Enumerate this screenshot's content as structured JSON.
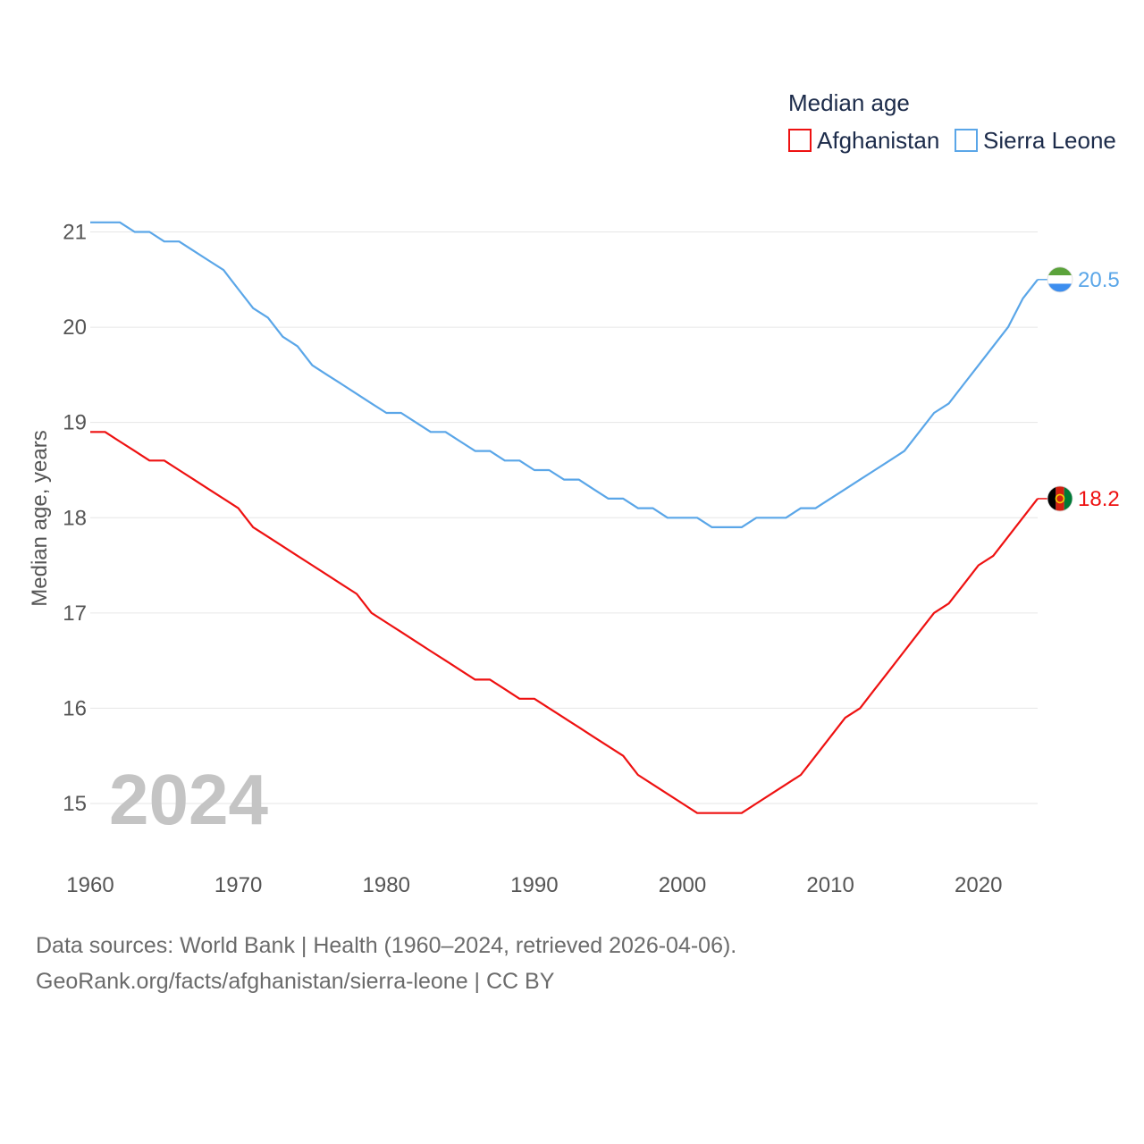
{
  "chart_data": {
    "type": "line",
    "title": "Median age",
    "ylabel": "Median age, years",
    "xlabel": "",
    "year_label": "2024",
    "xlim": [
      1960,
      2024
    ],
    "ylim": [
      14.5,
      21.1
    ],
    "yticks": [
      15,
      16,
      17,
      18,
      19,
      20,
      21
    ],
    "xticks": [
      1960,
      1970,
      1980,
      1990,
      2000,
      2010,
      2020
    ],
    "legend_position": "top-right",
    "x": [
      1960,
      1961,
      1962,
      1963,
      1964,
      1965,
      1966,
      1967,
      1968,
      1969,
      1970,
      1971,
      1972,
      1973,
      1974,
      1975,
      1976,
      1977,
      1978,
      1979,
      1980,
      1981,
      1982,
      1983,
      1984,
      1985,
      1986,
      1987,
      1988,
      1989,
      1990,
      1991,
      1992,
      1993,
      1994,
      1995,
      1996,
      1997,
      1998,
      1999,
      2000,
      2001,
      2002,
      2003,
      2004,
      2005,
      2006,
      2007,
      2008,
      2009,
      2010,
      2011,
      2012,
      2013,
      2014,
      2015,
      2016,
      2017,
      2018,
      2019,
      2020,
      2021,
      2022,
      2023,
      2024
    ],
    "series": [
      {
        "name": "Afghanistan",
        "color": "#ee1111",
        "end_label": "18.2",
        "flag": "afghanistan-flag",
        "values": [
          18.9,
          18.9,
          18.8,
          18.7,
          18.6,
          18.6,
          18.5,
          18.4,
          18.3,
          18.2,
          18.1,
          17.9,
          17.8,
          17.7,
          17.6,
          17.5,
          17.4,
          17.3,
          17.2,
          17.0,
          16.9,
          16.8,
          16.7,
          16.6,
          16.5,
          16.4,
          16.3,
          16.3,
          16.2,
          16.1,
          16.1,
          16.0,
          15.9,
          15.8,
          15.7,
          15.6,
          15.5,
          15.3,
          15.2,
          15.1,
          15.0,
          14.9,
          14.9,
          14.9,
          14.9,
          15.0,
          15.1,
          15.2,
          15.3,
          15.5,
          15.7,
          15.9,
          16.0,
          16.2,
          16.4,
          16.6,
          16.8,
          17.0,
          17.1,
          17.3,
          17.5,
          17.6,
          17.8,
          18.0,
          18.2
        ]
      },
      {
        "name": "Sierra Leone",
        "color": "#5aa6e8",
        "end_label": "20.5",
        "flag": "sierra-leone-flag",
        "values": [
          21.1,
          21.1,
          21.1,
          21.0,
          21.0,
          20.9,
          20.9,
          20.8,
          20.7,
          20.6,
          20.4,
          20.2,
          20.1,
          19.9,
          19.8,
          19.6,
          19.5,
          19.4,
          19.3,
          19.2,
          19.1,
          19.1,
          19.0,
          18.9,
          18.9,
          18.8,
          18.7,
          18.7,
          18.6,
          18.6,
          18.5,
          18.5,
          18.4,
          18.4,
          18.3,
          18.2,
          18.2,
          18.1,
          18.1,
          18.0,
          18.0,
          18.0,
          17.9,
          17.9,
          17.9,
          18.0,
          18.0,
          18.0,
          18.1,
          18.1,
          18.2,
          18.3,
          18.4,
          18.5,
          18.6,
          18.7,
          18.9,
          19.1,
          19.2,
          19.4,
          19.6,
          19.8,
          20.0,
          20.3,
          20.5
        ]
      }
    ]
  },
  "source": {
    "line1": "Data sources: World Bank | Health (1960–2024, retrieved 2026-04-06).",
    "line2": "GeoRank.org/facts/afghanistan/sierra-leone | CC BY"
  }
}
